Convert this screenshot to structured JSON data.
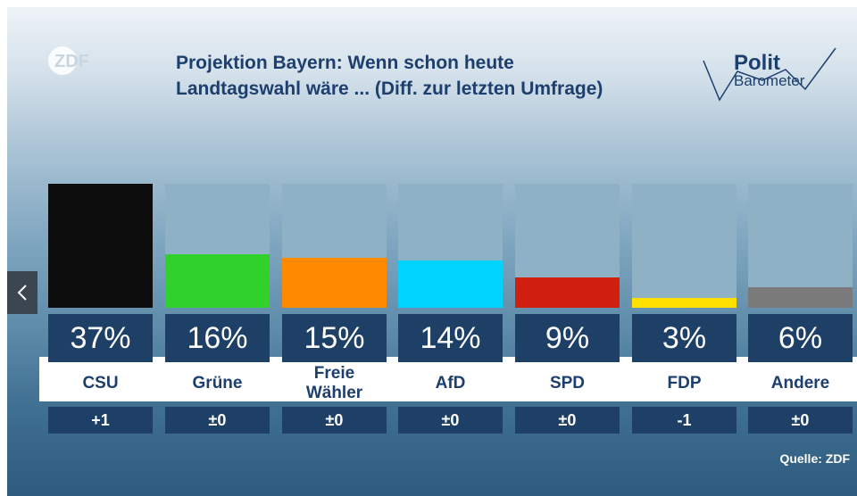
{
  "header": {
    "title_line1": "Projektion Bayern: Wenn schon heute",
    "title_line2": "Landtagswahl wäre ... (Diff. zur letzten Umfrage)",
    "brand_left": "ZDF",
    "brand_right_line1": "Polit",
    "brand_right_line2": "Barometer"
  },
  "source": "Quelle: ZDF",
  "colors": {
    "CSU": "#0d0d0d",
    "Grüne": "#2fd12a",
    "Freie Wähler": "#ff8a00",
    "AfD": "#00d4ff",
    "SPD": "#d01f0e",
    "FDP": "#ffe000",
    "Andere": "#7a7a7a"
  },
  "chart_data": {
    "type": "bar",
    "title": "Projektion Bayern: Wenn schon heute Landtagswahl wäre ... (Diff. zur letzten Umfrage)",
    "categories": [
      "CSU",
      "Grüne",
      "Freie Wähler",
      "AfD",
      "SPD",
      "FDP",
      "Andere"
    ],
    "category_lines": [
      [
        "CSU"
      ],
      [
        "Grüne"
      ],
      [
        "Freie",
        "Wähler"
      ],
      [
        "AfD"
      ],
      [
        "SPD"
      ],
      [
        "FDP"
      ],
      [
        "Andere"
      ]
    ],
    "values": [
      37,
      16,
      15,
      14,
      9,
      3,
      6
    ],
    "value_labels": [
      "37%",
      "16%",
      "15%",
      "14%",
      "9%",
      "3%",
      "6%"
    ],
    "diffs": [
      "+1",
      "±0",
      "±0",
      "±0",
      "±0",
      "-1",
      "±0"
    ],
    "ylim": [
      0,
      37
    ],
    "unit": "%",
    "xlabel": "",
    "ylabel": ""
  }
}
